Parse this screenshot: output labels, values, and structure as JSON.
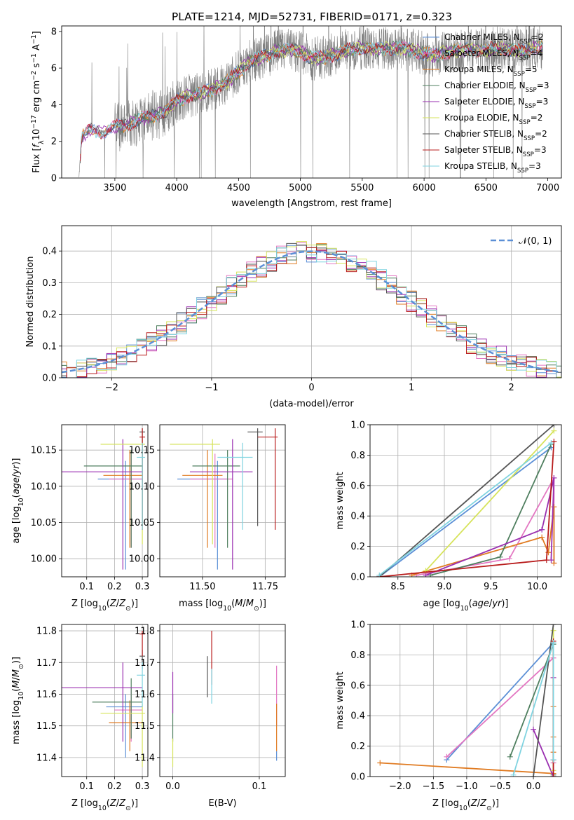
{
  "title": "PLATE=1214, MJD=52731, FIBERID=0171, z=0.323",
  "colors": {
    "chabrier_miles": "#5b8fd6",
    "salpeter_miles": "#e377c2",
    "kroupa_miles": "#e07b22",
    "chabrier_elodie": "#4f7f5f",
    "salpeter_elodie": "#9a2fb0",
    "kroupa_elodie": "#d6e35a",
    "chabrier_stelib": "#555555",
    "salpeter_stelib": "#b81c1c",
    "kroupa_stelib": "#7fd3e0",
    "data_spectrum": "#808080",
    "normal_curve": "#5b8fd6"
  },
  "chart_data": [
    {
      "id": "spectrum",
      "type": "line",
      "title": "PLATE=1214, MJD=52731, FIBERID=0171, z=0.323",
      "xlabel": "wavelength [Angstrom, rest frame]",
      "ylabel": "Flux [f_λ 10^-17 erg cm^-2 s^-1 A^-1]",
      "xlim": [
        3070,
        7110
      ],
      "ylim": [
        0,
        8.3
      ],
      "xticks": [
        3500,
        4000,
        4500,
        5000,
        5500,
        6000,
        6500,
        7000
      ],
      "yticks": [
        0,
        2,
        4,
        6,
        8
      ],
      "legend_position": "upper right",
      "data_continuum": [
        [
          3210,
          0
        ],
        [
          3230,
          2.2
        ],
        [
          3300,
          2.6
        ],
        [
          3400,
          2.5
        ],
        [
          3500,
          2.8
        ],
        [
          3600,
          2.9
        ],
        [
          3700,
          3.2
        ],
        [
          3800,
          3.4
        ],
        [
          3900,
          3.6
        ],
        [
          4000,
          4.2
        ],
        [
          4100,
          4.5
        ],
        [
          4200,
          4.6
        ],
        [
          4300,
          4.9
        ],
        [
          4400,
          5.2
        ],
        [
          4500,
          5.8
        ],
        [
          4600,
          6.4
        ],
        [
          4700,
          6.6
        ],
        [
          4800,
          6.9
        ],
        [
          4900,
          7.0
        ],
        [
          5000,
          6.9
        ],
        [
          5100,
          6.5
        ],
        [
          5200,
          6.6
        ],
        [
          5300,
          6.8
        ],
        [
          5400,
          7.0
        ],
        [
          5500,
          7.1
        ],
        [
          5600,
          7.0
        ],
        [
          5700,
          7.1
        ],
        [
          5800,
          7.1
        ],
        [
          5900,
          7.0
        ],
        [
          6000,
          6.8
        ],
        [
          6100,
          6.7
        ],
        [
          6200,
          6.9
        ],
        [
          6300,
          7.0
        ],
        [
          6400,
          7.0
        ],
        [
          6500,
          7.0
        ],
        [
          6600,
          7.1
        ],
        [
          6700,
          7.0
        ],
        [
          6800,
          6.9
        ],
        [
          6900,
          7.1
        ],
        [
          6950,
          7.1
        ]
      ],
      "series": [
        {
          "name": "Chabrier MILES, N_SSP=2",
          "color_key": "chabrier_miles"
        },
        {
          "name": "Salpeter MILES, N_SSP=4",
          "color_key": "salpeter_miles"
        },
        {
          "name": "Kroupa MILES, N_SSP=5",
          "color_key": "kroupa_miles"
        },
        {
          "name": "Chabrier ELODIE, N_SSP=3",
          "color_key": "chabrier_elodie"
        },
        {
          "name": "Salpeter ELODIE, N_SSP=3",
          "color_key": "salpeter_elodie"
        },
        {
          "name": "Kroupa ELODIE, N_SSP=2",
          "color_key": "kroupa_elodie"
        },
        {
          "name": "Chabrier STELIB, N_SSP=2",
          "color_key": "chabrier_stelib"
        },
        {
          "name": "Salpeter STELIB, N_SSP=3",
          "color_key": "salpeter_stelib"
        },
        {
          "name": "Kroupa STELIB, N_SSP=3",
          "color_key": "kroupa_stelib"
        }
      ]
    },
    {
      "id": "residuals",
      "type": "line",
      "xlabel": "(data-model)/error",
      "ylabel": "Normed distribution",
      "xlim": [
        -2.5,
        2.5
      ],
      "ylim": [
        0,
        0.48
      ],
      "xticks": [
        -2,
        -1,
        0,
        1,
        2
      ],
      "yticks": [
        0.0,
        0.1,
        0.2,
        0.3,
        0.4
      ],
      "grid": true,
      "legend_position": "upper right",
      "legend": "N(0,1)",
      "bin_width": 0.1,
      "series_color_keys": [
        "chabrier_miles",
        "salpeter_miles",
        "kroupa_miles",
        "chabrier_elodie",
        "salpeter_elodie",
        "kroupa_elodie",
        "chabrier_stelib",
        "salpeter_stelib",
        "kroupa_stelib"
      ]
    },
    {
      "id": "age_vs_Z",
      "type": "scatter",
      "xlabel": "Z [log10(Z/Z⊙)]",
      "ylabel": "age [log10(age/yr)]",
      "xlim": [
        0.01,
        0.32
      ],
      "ylim": [
        9.975,
        10.185
      ],
      "xticks": [
        0.1,
        0.2,
        0.3
      ],
      "yticks": [
        10.0,
        10.05,
        10.1,
        10.15
      ],
      "grid": true,
      "points": [
        {
          "c": "chabrier_miles",
          "x": 0.24,
          "xl": 0.14,
          "xh": 0.3,
          "y": 10.11,
          "yl": 9.985,
          "yh": 10.135
        },
        {
          "c": "salpeter_miles",
          "x": 0.26,
          "xl": 0.18,
          "xh": 0.3,
          "y": 10.11,
          "yl": 10.015,
          "yh": 10.145
        },
        {
          "c": "kroupa_miles",
          "x": 0.255,
          "xl": 0.16,
          "xh": 0.3,
          "y": 10.115,
          "yl": 10.015,
          "yh": 10.15
        },
        {
          "c": "chabrier_elodie",
          "x": 0.26,
          "xl": 0.09,
          "xh": 0.3,
          "y": 10.128,
          "yl": 10.015,
          "yh": 10.15
        },
        {
          "c": "salpeter_elodie",
          "x": 0.23,
          "xl": 0.01,
          "xh": 0.3,
          "y": 10.12,
          "yl": 9.985,
          "yh": 10.165
        },
        {
          "c": "kroupa_elodie",
          "x": 0.3,
          "xl": 0.15,
          "xh": 0.31,
          "y": 10.158,
          "yl": 10.02,
          "yh": 10.165
        },
        {
          "c": "chabrier_stelib",
          "x": 0.3,
          "xl": 0.29,
          "xh": 0.31,
          "y": 10.175,
          "yl": 10.05,
          "yh": 10.18
        },
        {
          "c": "salpeter_stelib",
          "x": 0.3,
          "xl": 0.29,
          "xh": 0.31,
          "y": 10.168,
          "yl": 10.04,
          "yh": 10.18
        },
        {
          "c": "kroupa_stelib",
          "x": 0.3,
          "xl": 0.28,
          "xh": 0.31,
          "y": 10.14,
          "yl": 10.04,
          "yh": 10.16
        }
      ]
    },
    {
      "id": "age_vs_mass",
      "type": "scatter",
      "xlabel": "mass [log10(M/M⊙)]",
      "ylabel": "",
      "xlim": [
        11.33,
        11.83
      ],
      "ylim": [
        9.975,
        10.185
      ],
      "xticks": [
        11.5,
        11.75
      ],
      "yticks": [
        10.0,
        10.05,
        10.1,
        10.15
      ],
      "grid": true,
      "points": [
        {
          "c": "chabrier_miles",
          "x": 11.56,
          "xl": 11.4,
          "xh": 11.6,
          "y": 10.11,
          "yl": 9.985,
          "yh": 10.135
        },
        {
          "c": "salpeter_miles",
          "x": 11.55,
          "xl": 11.45,
          "xh": 11.62,
          "y": 10.11,
          "yl": 10.015,
          "yh": 10.145
        },
        {
          "c": "kroupa_miles",
          "x": 11.52,
          "xl": 11.42,
          "xh": 11.58,
          "y": 10.115,
          "yl": 10.015,
          "yh": 10.15
        },
        {
          "c": "chabrier_elodie",
          "x": 11.6,
          "xl": 11.46,
          "xh": 11.65,
          "y": 10.128,
          "yl": 10.015,
          "yh": 10.15
        },
        {
          "c": "salpeter_elodie",
          "x": 11.62,
          "xl": 11.45,
          "xh": 11.7,
          "y": 10.12,
          "yl": 9.985,
          "yh": 10.165
        },
        {
          "c": "kroupa_elodie",
          "x": 11.54,
          "xl": 11.37,
          "xh": 11.57,
          "y": 10.158,
          "yl": 10.02,
          "yh": 10.165
        },
        {
          "c": "chabrier_stelib",
          "x": 11.72,
          "xl": 11.68,
          "xh": 11.74,
          "y": 10.175,
          "yl": 10.045,
          "yh": 10.18
        },
        {
          "c": "salpeter_stelib",
          "x": 11.79,
          "xl": 11.72,
          "xh": 11.8,
          "y": 10.168,
          "yl": 10.04,
          "yh": 10.18
        },
        {
          "c": "kroupa_stelib",
          "x": 11.66,
          "xl": 11.56,
          "xh": 11.7,
          "y": 10.14,
          "yl": 10.04,
          "yh": 10.16
        }
      ]
    },
    {
      "id": "weight_vs_age",
      "type": "line",
      "xlabel": "age [log10(age/yr)]",
      "ylabel": "mass weight",
      "xlim": [
        8.2,
        10.26
      ],
      "ylim": [
        0,
        1.0
      ],
      "xticks": [
        8.5,
        9.0,
        9.5,
        10.0
      ],
      "yticks": [
        0.0,
        0.2,
        0.4,
        0.6,
        0.8,
        1.0
      ],
      "grid": true,
      "series": [
        {
          "c": "chabrier_miles",
          "pts": [
            [
              8.3,
              0.0
            ],
            [
              10.15,
              0.85
            ]
          ]
        },
        {
          "c": "salpeter_miles",
          "pts": [
            [
              8.7,
              0.01
            ],
            [
              9.7,
              0.12
            ],
            [
              10.18,
              0.65
            ],
            [
              10.18,
              0.09
            ]
          ]
        },
        {
          "c": "kroupa_miles",
          "pts": [
            [
              8.65,
              0.01
            ],
            [
              10.05,
              0.26
            ],
            [
              10.12,
              0.16
            ],
            [
              10.18,
              0.46
            ],
            [
              10.18,
              0.09
            ]
          ]
        },
        {
          "c": "chabrier_elodie",
          "pts": [
            [
              8.85,
              0.01
            ],
            [
              9.6,
              0.13
            ],
            [
              10.15,
              0.87
            ]
          ]
        },
        {
          "c": "salpeter_elodie",
          "pts": [
            [
              8.8,
              0.01
            ],
            [
              10.05,
              0.31
            ],
            [
              10.18,
              0.65
            ],
            [
              10.15,
              0.11
            ]
          ]
        },
        {
          "c": "kroupa_elodie",
          "pts": [
            [
              8.8,
              0.04
            ],
            [
              10.18,
              0.96
            ]
          ]
        },
        {
          "c": "chabrier_stelib",
          "pts": [
            [
              8.3,
              0.0
            ],
            [
              10.18,
              1.0
            ]
          ]
        },
        {
          "c": "salpeter_stelib",
          "pts": [
            [
              8.3,
              0.0
            ],
            [
              10.1,
              0.11
            ],
            [
              10.18,
              0.89
            ]
          ]
        },
        {
          "c": "kroupa_stelib",
          "pts": [
            [
              8.3,
              0.01
            ],
            [
              10.15,
              0.88
            ]
          ]
        }
      ]
    },
    {
      "id": "mass_vs_Z",
      "type": "scatter",
      "xlabel": "Z [log10(Z/Z⊙)]",
      "ylabel": "mass [log10(M/M⊙)]",
      "xlim": [
        0.01,
        0.32
      ],
      "ylim": [
        11.34,
        11.82
      ],
      "xticks": [
        0.1,
        0.2,
        0.3
      ],
      "yticks": [
        11.4,
        11.5,
        11.6,
        11.7,
        11.8
      ],
      "grid": true,
      "points": [
        {
          "c": "chabrier_miles",
          "x": 0.24,
          "xl": 0.17,
          "xh": 0.3,
          "y": 11.56,
          "yl": 11.4,
          "yh": 11.6
        },
        {
          "c": "salpeter_miles",
          "x": 0.26,
          "xl": 0.2,
          "xh": 0.3,
          "y": 11.55,
          "yl": 11.45,
          "yh": 11.62
        },
        {
          "c": "kroupa_miles",
          "x": 0.255,
          "xl": 0.18,
          "xh": 0.3,
          "y": 11.51,
          "yl": 11.42,
          "yh": 11.58
        },
        {
          "c": "chabrier_elodie",
          "x": 0.26,
          "xl": 0.12,
          "xh": 0.3,
          "y": 11.575,
          "yl": 11.46,
          "yh": 11.65
        },
        {
          "c": "salpeter_elodie",
          "x": 0.23,
          "xl": 0.01,
          "xh": 0.3,
          "y": 11.62,
          "yl": 11.45,
          "yh": 11.7
        },
        {
          "c": "kroupa_elodie",
          "x": 0.3,
          "xl": 0.15,
          "xh": 0.31,
          "y": 11.54,
          "yl": 11.37,
          "yh": 11.57
        },
        {
          "c": "chabrier_stelib",
          "x": 0.3,
          "xl": 0.29,
          "xh": 0.31,
          "y": 11.72,
          "yl": 11.68,
          "yh": 11.74
        },
        {
          "c": "salpeter_stelib",
          "x": 0.3,
          "xl": 0.29,
          "xh": 0.31,
          "y": 11.79,
          "yl": 11.72,
          "yh": 11.8
        },
        {
          "c": "kroupa_stelib",
          "x": 0.3,
          "xl": 0.28,
          "xh": 0.31,
          "y": 11.66,
          "yl": 11.56,
          "yh": 11.7
        }
      ]
    },
    {
      "id": "mass_vs_ebv",
      "type": "scatter",
      "xlabel": "E(B-V)",
      "ylabel": "",
      "xlim": [
        -0.015,
        0.13
      ],
      "ylim": [
        11.34,
        11.82
      ],
      "xticks": [
        0.0,
        0.1
      ],
      "yticks": [
        11.4,
        11.5,
        11.6,
        11.7,
        11.8
      ],
      "grid": true,
      "points": [
        {
          "c": "chabrier_miles",
          "x": 0.12,
          "xl": 0.12,
          "xh": 0.12,
          "y": 11.4,
          "yl": 11.39,
          "yh": 11.42
        },
        {
          "c": "salpeter_miles",
          "x": 0.12,
          "xl": 0.12,
          "xh": 0.12,
          "y": 11.6,
          "yl": 11.5,
          "yh": 11.69
        },
        {
          "c": "kroupa_miles",
          "x": 0.12,
          "xl": 0.12,
          "xh": 0.12,
          "y": 11.5,
          "yl": 11.42,
          "yh": 11.57
        },
        {
          "c": "chabrier_elodie",
          "x": 0.0,
          "xl": 0.0,
          "xh": 0.0,
          "y": 11.55,
          "yl": 11.45,
          "yh": 11.6
        },
        {
          "c": "salpeter_elodie",
          "x": 0.0,
          "xl": 0.0,
          "xh": 0.0,
          "y": 11.62,
          "yl": 11.54,
          "yh": 11.67
        },
        {
          "c": "kroupa_elodie",
          "x": 0.0,
          "xl": 0.0,
          "xh": 0.0,
          "y": 11.4,
          "yl": 11.37,
          "yh": 11.46
        },
        {
          "c": "chabrier_stelib",
          "x": 0.04,
          "xl": 0.04,
          "xh": 0.04,
          "y": 11.65,
          "yl": 11.59,
          "yh": 11.72
        },
        {
          "c": "salpeter_stelib",
          "x": 0.045,
          "xl": 0.045,
          "xh": 0.045,
          "y": 11.72,
          "yl": 11.63,
          "yh": 11.8
        },
        {
          "c": "kroupa_stelib",
          "x": 0.045,
          "xl": 0.045,
          "xh": 0.045,
          "y": 11.62,
          "yl": 11.57,
          "yh": 11.68
        }
      ]
    },
    {
      "id": "weight_vs_Z",
      "type": "line",
      "xlabel": "Z [log10(Z/Z⊙)]",
      "ylabel": "mass weight",
      "xlim": [
        -2.45,
        0.42
      ],
      "ylim": [
        0,
        1.0
      ],
      "xticks": [
        -2.0,
        -1.5,
        -1.0,
        -0.5,
        0.0
      ],
      "yticks": [
        0.0,
        0.2,
        0.4,
        0.6,
        0.8,
        1.0
      ],
      "grid": true,
      "series": [
        {
          "c": "chabrier_miles",
          "pts": [
            [
              -1.3,
              0.11
            ],
            [
              0.3,
              0.88
            ]
          ]
        },
        {
          "c": "salpeter_miles",
          "pts": [
            [
              -1.3,
              0.13
            ],
            [
              0.3,
              0.78
            ],
            [
              0.3,
              0.09
            ],
            [
              0.3,
              0.65
            ]
          ]
        },
        {
          "c": "kroupa_miles",
          "pts": [
            [
              -2.3,
              0.09
            ],
            [
              0.3,
              0.02
            ],
            [
              0.3,
              0.46
            ],
            [
              0.3,
              0.26
            ],
            [
              0.3,
              0.16
            ]
          ]
        },
        {
          "c": "chabrier_elodie",
          "pts": [
            [
              -0.35,
              0.13
            ],
            [
              0.3,
              0.87
            ],
            [
              0.3,
              0.01
            ]
          ]
        },
        {
          "c": "salpeter_elodie",
          "pts": [
            [
              0.0,
              0.31
            ],
            [
              0.3,
              0.0
            ],
            [
              0.3,
              0.65
            ],
            [
              0.3,
              0.11
            ]
          ]
        },
        {
          "c": "kroupa_elodie",
          "pts": [
            [
              0.3,
              0.04
            ],
            [
              0.3,
              0.96
            ]
          ]
        },
        {
          "c": "chabrier_stelib",
          "pts": [
            [
              0.0,
              0.0
            ],
            [
              0.3,
              1.0
            ]
          ]
        },
        {
          "c": "salpeter_stelib",
          "pts": [
            [
              0.3,
              0.0
            ],
            [
              0.3,
              0.11
            ],
            [
              0.3,
              0.89
            ]
          ]
        },
        {
          "c": "kroupa_stelib",
          "pts": [
            [
              -0.3,
              0.01
            ],
            [
              0.3,
              0.88
            ],
            [
              0.3,
              0.11
            ]
          ]
        }
      ]
    }
  ]
}
